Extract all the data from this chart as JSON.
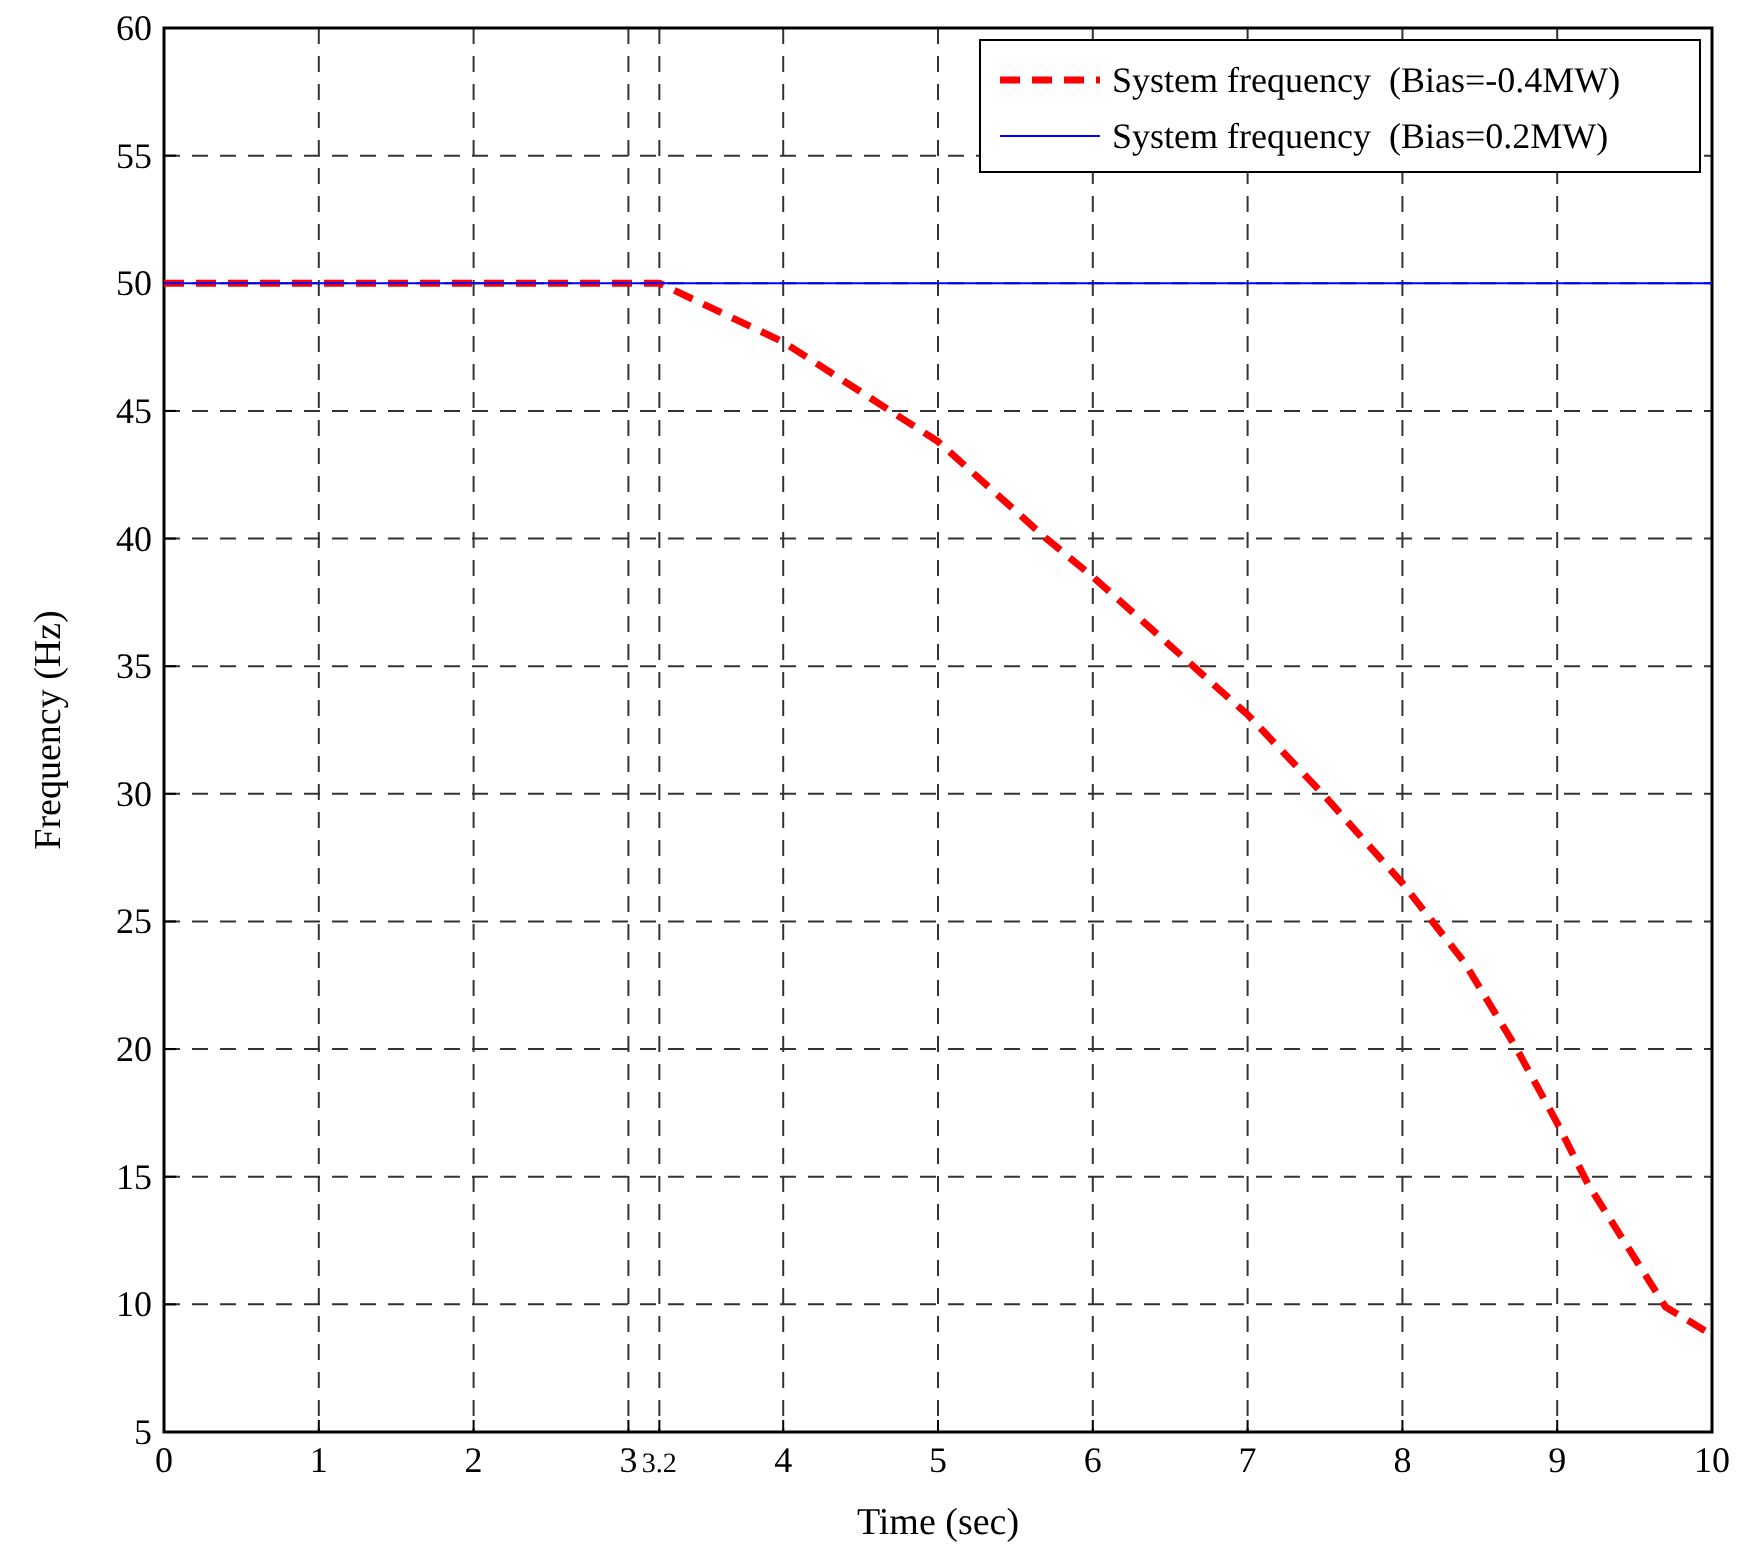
{
  "chart_data": {
    "type": "line",
    "xlabel": "Time (sec)",
    "ylabel": "Frequency (Hz)",
    "xlim": [
      0,
      10
    ],
    "ylim": [
      5,
      60
    ],
    "xticks": [
      0,
      1,
      2,
      3,
      3.2,
      4,
      5,
      6,
      7,
      8,
      9,
      10
    ],
    "yticks": [
      5,
      10,
      15,
      20,
      25,
      30,
      35,
      40,
      45,
      50,
      55,
      60
    ],
    "grid": true,
    "legend": "top right",
    "series": [
      {
        "name": "System frequency  (Bias=-0.4MW)",
        "color": "#ff0000",
        "line_style": "dashed",
        "x": [
          0,
          3.2,
          4,
          5,
          5.7,
          6,
          7,
          7.5,
          8,
          8.4,
          8.73,
          9,
          9.2,
          9.7,
          10
        ],
        "values": [
          50,
          50,
          47.7,
          43.8,
          40,
          38.5,
          33.1,
          29.9,
          26.5,
          23.4,
          20.1,
          17.1,
          14.7,
          9.9,
          8.8
        ]
      },
      {
        "name": "System frequency  (Bias=0.2MW)",
        "color": "#0000ff",
        "line_style": "solid",
        "x": [
          0,
          10
        ],
        "values": [
          50,
          50
        ]
      }
    ]
  }
}
